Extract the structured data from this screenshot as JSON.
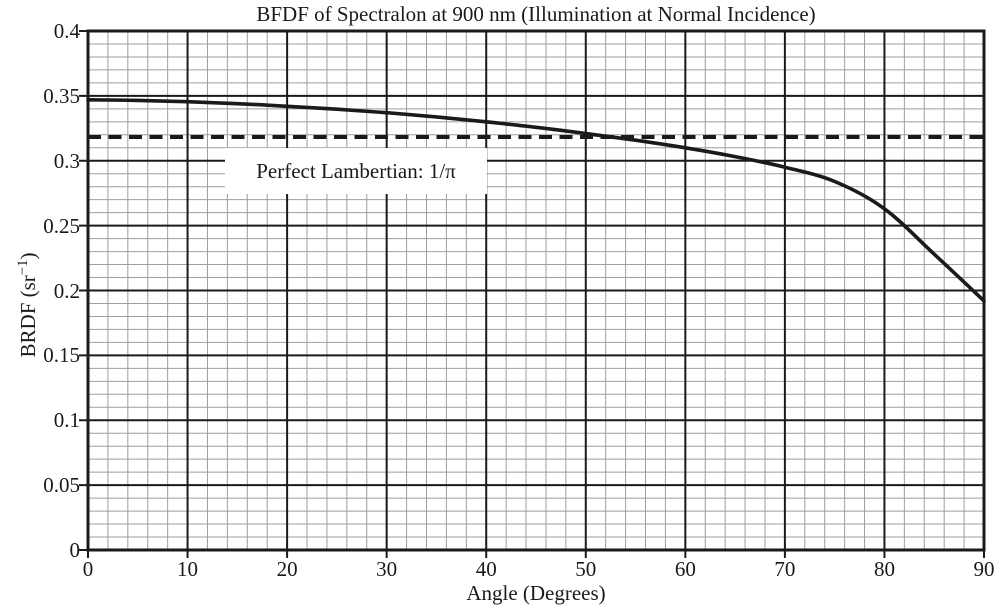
{
  "chart_data": {
    "type": "line",
    "title": "BFDF of Spectralon at 900 nm (Illumination at Normal Incidence)",
    "xlabel": "Angle (Degrees)",
    "ylabel": "BRDF (sr⁻¹)",
    "ylabel_parts": {
      "prefix": "BRDF (sr",
      "superscript": "−1",
      "suffix": ")"
    },
    "xlim": [
      0,
      90
    ],
    "ylim": [
      0,
      0.4
    ],
    "x_ticks": [
      0,
      10,
      20,
      30,
      40,
      50,
      60,
      70,
      80,
      90
    ],
    "x_tick_labels": [
      "0",
      "10",
      "20",
      "30",
      "40",
      "50",
      "60",
      "70",
      "80",
      "90"
    ],
    "y_ticks": [
      0,
      0.05,
      0.1,
      0.15,
      0.2,
      0.25,
      0.3,
      0.35,
      0.4
    ],
    "y_tick_labels": [
      "0",
      "0.05",
      "0.1",
      "0.15",
      "0.2",
      "0.25",
      "0.3",
      "0.35",
      "0.4"
    ],
    "x_minor_step": 2,
    "y_minor_step": 0.01,
    "grid": "major and minor, boxed frame",
    "legend": "none",
    "series": [
      {
        "name": "Spectralon BRDF at 900 nm",
        "style": "solid",
        "x": [
          0,
          5,
          10,
          15,
          20,
          25,
          30,
          35,
          40,
          45,
          50,
          55,
          60,
          65,
          70,
          75,
          80,
          85,
          90
        ],
        "y": [
          0.347,
          0.3465,
          0.3455,
          0.344,
          0.342,
          0.3397,
          0.337,
          0.3338,
          0.33,
          0.3258,
          0.321,
          0.3158,
          0.31,
          0.3032,
          0.295,
          0.284,
          0.263,
          0.228,
          0.192
        ]
      },
      {
        "name": "Perfect Lambertian reference",
        "style": "dashed",
        "value": 0.3183
      }
    ],
    "annotation": {
      "text": "Perfect Lambertian: 1/π"
    },
    "colors": {
      "foreground": "#1a1a1a",
      "minor_grid": "#9e9e9e",
      "major_grid": "#1a1a1a",
      "background": "#ffffff"
    }
  }
}
